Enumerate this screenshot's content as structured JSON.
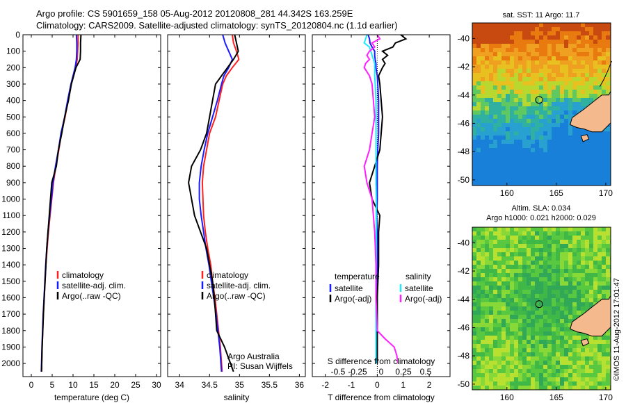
{
  "header": {
    "line1": "Argo profile: CS 5901659_158 05-Aug-2012 20120808_281 44.342S 163.259E",
    "line2": "Climatology: CARS2009. Satellite-adjusted climatology: synTS_20120804.nc (1.1d earlier)"
  },
  "colors": {
    "climatology": "#ff2020",
    "satellite": "#1a1aff",
    "argo": "#000000",
    "satellite_salinity": "#20e8ff",
    "argo_salinity": "#ff20ff",
    "land": "#f5b98e"
  },
  "chart_data": [
    {
      "type": "line",
      "name": "temperature-profile",
      "xlabel": "temperature (deg C)",
      "ylabel": "",
      "xlim": [
        -2,
        31
      ],
      "ylim": [
        2080,
        0
      ],
      "xticks": [
        0,
        5,
        10,
        15,
        20,
        25,
        30
      ],
      "yticks": [
        0,
        100,
        200,
        300,
        400,
        500,
        600,
        700,
        800,
        900,
        1000,
        1100,
        1200,
        1300,
        1400,
        1500,
        1600,
        1700,
        1800,
        1900,
        2000
      ],
      "legend": [
        "climatology",
        "satellite-adj. clim.",
        "Argo(..raw -QC)"
      ],
      "depth": [
        0,
        50,
        100,
        150,
        200,
        300,
        400,
        500,
        600,
        700,
        800,
        900,
        1000,
        1100,
        1200,
        1300,
        1400,
        1500,
        1600,
        1700,
        1800,
        1900,
        2000,
        2050
      ],
      "series": [
        {
          "name": "climatology",
          "color": "#ff2020",
          "values": [
            11.2,
            11.2,
            11.1,
            11.0,
            10.6,
            9.6,
            8.8,
            8.1,
            7.2,
            6.6,
            5.9,
            5.3,
            4.9,
            4.5,
            4.1,
            3.8,
            3.5,
            3.3,
            3.1,
            2.9,
            2.75,
            2.6,
            2.5,
            2.45
          ]
        },
        {
          "name": "satellite-adj. clim.",
          "color": "#1a1aff",
          "values": [
            10.8,
            10.9,
            10.9,
            10.8,
            10.5,
            9.5,
            8.7,
            8.0,
            7.1,
            6.5,
            5.8,
            5.2,
            4.8,
            4.4,
            4.0,
            3.7,
            3.45,
            3.25,
            3.05,
            2.85,
            2.7,
            2.55,
            2.45,
            2.4
          ]
        },
        {
          "name": "Argo(..raw -QC)",
          "color": "#000000",
          "values": [
            11.9,
            11.8,
            11.8,
            11.7,
            10.7,
            9.6,
            8.9,
            8.0,
            7.3,
            6.5,
            6.0,
            4.9,
            4.6,
            4.3,
            4.0,
            3.7,
            3.5,
            3.3,
            3.1,
            2.9,
            2.75,
            2.6,
            2.5,
            2.45
          ]
        }
      ]
    },
    {
      "type": "line",
      "name": "salinity-profile",
      "xlabel": "salinity",
      "xlim": [
        33.8,
        36.1
      ],
      "ylim": [
        2080,
        0
      ],
      "xticks": [
        34,
        34.5,
        35,
        35.5,
        36
      ],
      "legend": [
        "climatology",
        "satellite-adj. clim.",
        "Argo(..raw -QC)"
      ],
      "annotation": [
        "Argo Australia",
        "PI: Susan Wijffels"
      ],
      "depth": [
        0,
        50,
        100,
        150,
        200,
        250,
        300,
        400,
        500,
        600,
        700,
        800,
        900,
        1000,
        1100,
        1200,
        1300,
        1400,
        1500,
        1600,
        1700,
        1800,
        1900,
        2000,
        2050
      ],
      "series": [
        {
          "name": "climatology",
          "color": "#ff2020",
          "values": [
            34.88,
            34.9,
            34.95,
            34.99,
            34.88,
            34.78,
            34.72,
            34.66,
            34.6,
            34.5,
            34.45,
            34.4,
            34.38,
            34.39,
            34.4,
            34.43,
            34.47,
            34.52,
            34.55,
            34.59,
            34.62,
            34.65,
            34.68,
            34.7,
            34.71
          ]
        },
        {
          "name": "satellite-adj. clim.",
          "color": "#1a1aff",
          "values": [
            34.72,
            34.76,
            34.82,
            34.88,
            34.82,
            34.74,
            34.7,
            34.63,
            34.55,
            34.47,
            34.41,
            34.36,
            34.33,
            34.33,
            34.36,
            34.4,
            34.44,
            34.49,
            34.53,
            34.57,
            34.61,
            34.64,
            34.67,
            34.69,
            34.7
          ]
        },
        {
          "name": "Argo(..raw -QC)",
          "color": "#000000",
          "values": [
            34.92,
            34.95,
            34.98,
            34.9,
            34.8,
            34.7,
            34.6,
            34.55,
            34.5,
            34.45,
            34.35,
            34.2,
            34.15,
            34.2,
            34.25,
            34.35,
            34.45,
            34.5,
            34.55,
            34.58,
            34.6,
            34.62,
            34.75,
            34.85,
            34.9
          ]
        }
      ]
    },
    {
      "type": "line",
      "name": "difference-profile",
      "xlabel": "T difference from climatology",
      "xlabel2": "S difference from climatology",
      "xlim": [
        -2.5,
        2.8
      ],
      "ylim": [
        2080,
        0
      ],
      "xticks": [
        -2,
        -1,
        0,
        1,
        2
      ],
      "xticks2": [
        "-0.5",
        "-0.25",
        "0",
        "0.25",
        "0.5"
      ],
      "legend_headers": [
        "temperature",
        "salinity"
      ],
      "legend": [
        "satellite",
        "Argo(-adj)",
        "satellite",
        "Argo(-adj)"
      ],
      "depth": [
        0,
        25,
        50,
        75,
        100,
        125,
        150,
        175,
        200,
        250,
        300,
        400,
        500,
        600,
        700,
        800,
        900,
        1000,
        1100,
        1200,
        1400,
        1600,
        1800,
        1850,
        1900,
        1950,
        2000
      ],
      "series": [
        {
          "name": "satellite",
          "group": "temperature",
          "color": "#1a1aff",
          "values": [
            -0.35,
            -0.3,
            -0.28,
            -0.2,
            -0.1,
            -0.1,
            -0.08,
            -0.05,
            -0.05,
            0.0,
            0.02,
            0.05,
            0.05,
            0.05,
            0.02,
            0.0,
            0.0,
            0.0,
            -0.02,
            0.0,
            0.0,
            0.0,
            0.0,
            0.0,
            0.0,
            0.0,
            0.0
          ]
        },
        {
          "name": "Argo(-adj)",
          "group": "temperature",
          "color": "#000000",
          "values": [
            0.9,
            1.1,
            0.7,
            0.6,
            0.2,
            0.4,
            0.2,
            0.3,
            0.2,
            0.05,
            0.1,
            0.15,
            0.2,
            0.15,
            0.1,
            -0.1,
            -0.3,
            -0.2,
            0.1,
            0.05,
            0.05,
            0.0,
            0.0,
            0.0,
            0.0,
            0.0,
            0.0
          ]
        },
        {
          "name": "satellite",
          "group": "salinity",
          "color": "#20e8ff",
          "values": [
            -0.4,
            -0.45,
            -0.5,
            -0.3,
            -0.25,
            -0.2,
            -0.15,
            -0.1,
            -0.1,
            -0.1,
            -0.08,
            -0.05,
            -0.05,
            -0.05,
            -0.05,
            -0.05,
            -0.05,
            -0.04,
            -0.04,
            -0.04,
            -0.04,
            -0.05,
            -0.05,
            -0.05,
            -0.05,
            -0.05,
            -0.05
          ]
        },
        {
          "name": "Argo(-adj)",
          "group": "salinity",
          "color": "#ff20ff",
          "values": [
            0.0,
            0.1,
            -0.2,
            -0.1,
            -0.3,
            -0.4,
            -0.3,
            -0.45,
            -0.5,
            -0.3,
            -0.2,
            -0.15,
            -0.1,
            -0.2,
            -0.3,
            -0.5,
            -0.4,
            -0.2,
            -0.15,
            -0.1,
            -0.05,
            -0.05,
            0.0,
            0.3,
            0.65,
            0.75,
            0.8
          ]
        }
      ]
    },
    {
      "type": "heatmap",
      "name": "sst-map",
      "title": "sat. SST: 11  Argo: 11.7",
      "xlim": [
        156.5,
        170.5
      ],
      "ylim": [
        -50.4,
        -38.9
      ],
      "xticks": [
        160,
        165,
        170
      ],
      "yticks": [
        -40,
        -42,
        -44,
        -46,
        -48,
        -50
      ],
      "marker": {
        "lon": 163.259,
        "lat": -44.342
      }
    },
    {
      "type": "heatmap",
      "name": "sla-map",
      "title": "Altim. SLA: 0.034",
      "subtitle": "Argo h1000: 0.021 h2000: 0.029",
      "xlim": [
        156.5,
        170.5
      ],
      "ylim": [
        -50.4,
        -38.9
      ],
      "xticks": [
        160,
        165,
        170
      ],
      "yticks": [
        -40,
        -42,
        -44,
        -46,
        -48,
        -50
      ],
      "marker": {
        "lon": 163.259,
        "lat": -44.342
      }
    }
  ],
  "stamp": "©IMOS 11-Aug-2012 17:01:47"
}
